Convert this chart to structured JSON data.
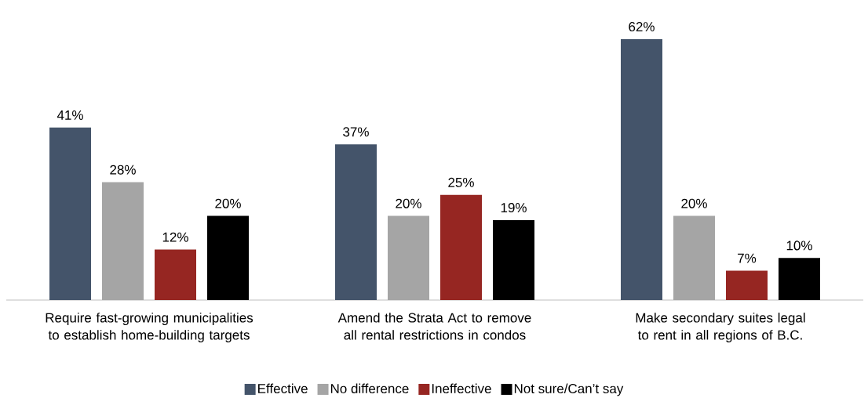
{
  "chart_data": {
    "type": "bar",
    "categories": [
      "Require fast-growing municipalities to establish home-building targets",
      "Amend the Strata Act to remove all rental restrictions in condos",
      "Make secondary suites legal to rent in all regions of B.C."
    ],
    "series": [
      {
        "name": "Effective",
        "color": "#44546a",
        "values": [
          41,
          37,
          62
        ],
        "value_labels": [
          "41%",
          "37%",
          "62%"
        ]
      },
      {
        "name": "No difference",
        "color": "#a5a5a5",
        "values": [
          28,
          20,
          20
        ],
        "value_labels": [
          "28%",
          "20%",
          "20%"
        ]
      },
      {
        "name": "Ineffective",
        "color": "#962622",
        "values": [
          12,
          25,
          7
        ],
        "value_labels": [
          "12%",
          "25%",
          "7%"
        ]
      },
      {
        "name": "Not sure/Can’t say",
        "color": "#000000",
        "values": [
          20,
          19,
          10
        ],
        "value_labels": [
          "20%",
          "19%",
          "10%"
        ]
      }
    ],
    "legend": "bottom"
  }
}
